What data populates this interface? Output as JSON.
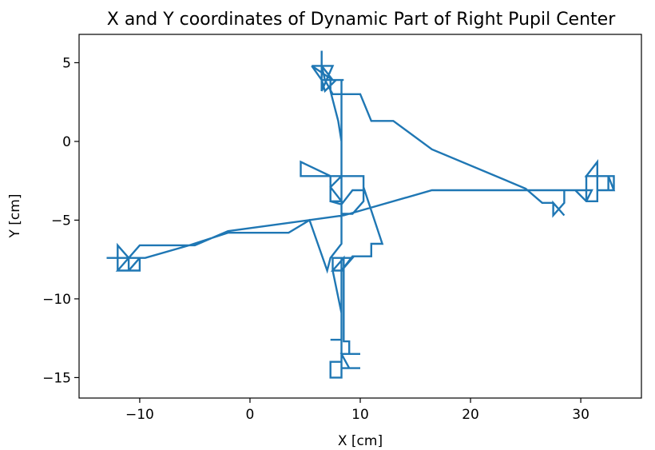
{
  "chart_data": {
    "type": "line",
    "title": "X and Y coordinates of Dynamic Part of Right Pupil Center",
    "xlabel": "X [cm]",
    "ylabel": "Y [cm]",
    "xlim": [
      -15.5,
      35.5
    ],
    "ylim": [
      -16.3,
      6.8
    ],
    "xticks": [
      -10,
      0,
      10,
      20,
      30
    ],
    "yticks": [
      5,
      0,
      -5,
      -10,
      -15
    ],
    "xtick_labels": [
      "−10",
      "0",
      "10",
      "20",
      "30"
    ],
    "ytick_labels": [
      "5",
      "0",
      "−5",
      "−10",
      "−15"
    ],
    "grid": false,
    "series": [
      {
        "color": "#1f77b4",
        "x": [
          6.5,
          6.5,
          5.6,
          7.5,
          6.5,
          6.5,
          7.5,
          5.6,
          6.5,
          8.5,
          7.3,
          7.3,
          8.0,
          8.3,
          8.3,
          4.6,
          4.6,
          7.3,
          7.3,
          8.3,
          7.3,
          8.3,
          9.3,
          10.3,
          10.3,
          9.3,
          8.3,
          7.3,
          8.3,
          8.3,
          7.3,
          7.0,
          5.4,
          3.5,
          -2.0,
          -5.5,
          -9.5,
          -12.0,
          -11.0,
          -10.0,
          -10.0,
          -12.0,
          -12.0,
          -11.0,
          -10.0,
          -11.0,
          -12.0,
          -12.0,
          -13.0,
          -9.5,
          -11.0,
          -11.0,
          -12.0,
          -10.0,
          -5.0,
          -2.0,
          8.5,
          16.5,
          31.0,
          30.5,
          30.5,
          32.5,
          33.0,
          33.0,
          30.5,
          31.5,
          31.5,
          33.0,
          32.5,
          32.5,
          31.5,
          31.5,
          30.5,
          29.5,
          28.5,
          28.5,
          27.5,
          27.5,
          28.5,
          27.5,
          26.5,
          25.0,
          16.5,
          13.0,
          11.0,
          10.0,
          9.0,
          7.5,
          6.8,
          6.5,
          6.5,
          6.8,
          7.8,
          8.3,
          8.3,
          9.3,
          10.3,
          10.3,
          12.0,
          12.0,
          11.0,
          11.0,
          10.0,
          9.3,
          8.3,
          8.3,
          9.3,
          8.3,
          8.3,
          8.3,
          7.3,
          7.3,
          8.3,
          8.3,
          8.3,
          7.3,
          8.3,
          8.3,
          7.5,
          7.5,
          8.5,
          8.5,
          7.5,
          8.5,
          8.5,
          9.0,
          9.0,
          10.0,
          8.3,
          9.0,
          10.0,
          8.3,
          8.3
        ],
        "y": [
          5.7,
          4.8,
          4.8,
          4.8,
          3.2,
          4.8,
          3.9,
          4.8,
          3.9,
          3.9,
          3.9,
          3.2,
          1.3,
          0.0,
          -2.2,
          -2.2,
          -1.3,
          -2.2,
          -3.8,
          -3.8,
          -2.9,
          -2.2,
          -2.2,
          -2.2,
          -3.1,
          -3.1,
          -4.0,
          -3.8,
          -4.0,
          -6.5,
          -7.4,
          -8.2,
          -5.0,
          -5.8,
          -5.8,
          -6.6,
          -7.4,
          -7.4,
          -7.4,
          -7.4,
          -8.2,
          -8.2,
          -6.6,
          -7.4,
          -7.4,
          -8.2,
          -8.2,
          -7.4,
          -7.4,
          -7.4,
          -7.4,
          -8.2,
          -8.2,
          -6.6,
          -6.6,
          -5.7,
          -4.7,
          -3.1,
          -3.1,
          -3.8,
          -2.2,
          -2.2,
          -3.1,
          -2.2,
          -2.2,
          -1.3,
          -3.1,
          -3.1,
          -2.2,
          -3.1,
          -3.1,
          -3.8,
          -3.8,
          -3.1,
          -3.1,
          -3.9,
          -4.7,
          -3.9,
          -4.7,
          -3.9,
          -3.9,
          -3.0,
          -0.5,
          1.3,
          1.3,
          3.0,
          3.0,
          3.0,
          3.9,
          4.8,
          3.9,
          3.2,
          3.9,
          3.9,
          -4.6,
          -4.6,
          -3.8,
          -2.9,
          -6.5,
          -6.5,
          -6.5,
          -7.3,
          -7.3,
          -7.3,
          -8.2,
          -7.4,
          -7.4,
          -8.2,
          -7.4,
          -14.0,
          -14.0,
          -15.0,
          -15.0,
          -14.0,
          -12.6,
          -12.6,
          -12.6,
          -10.9,
          -8.2,
          -7.4,
          -7.4,
          -8.2,
          -8.2,
          -7.4,
          -12.7,
          -12.7,
          -13.5,
          -13.5,
          -13.5,
          -14.4,
          -14.4,
          -14.4,
          -14.4
        ]
      }
    ]
  }
}
